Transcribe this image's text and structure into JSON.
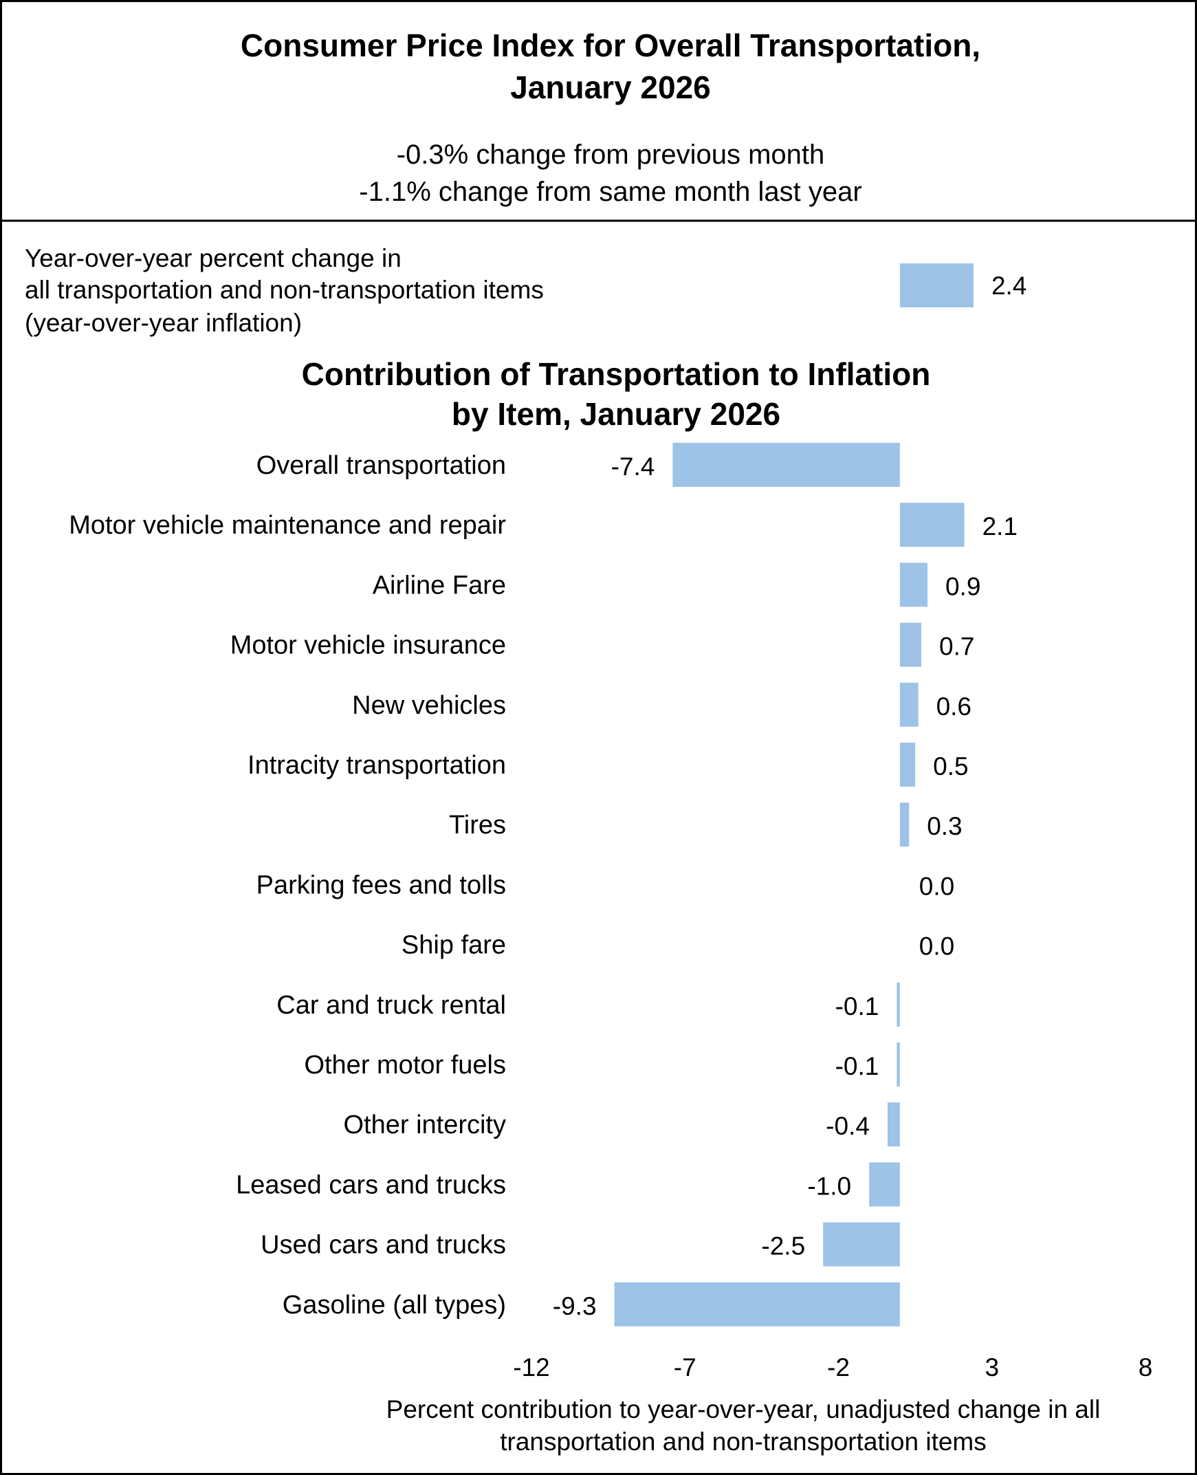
{
  "header": {
    "title_lines": [
      "Consumer Price Index for Overall Transportation,",
      "January 2026"
    ],
    "subtitle_lines": [
      "-0.3% change from previous month",
      "-1.1% change from same month last year"
    ]
  },
  "yoy": {
    "label_lines": [
      "Year-over-year percent change in",
      "all transportation and non-transportation items",
      "(year-over-year inflation)"
    ],
    "value": 2.4,
    "value_label": "2.4"
  },
  "chart_data": {
    "type": "bar",
    "orientation": "horizontal",
    "title_lines": [
      "Contribution of Transportation to Inflation",
      "by Item, January 2026"
    ],
    "categories": [
      "Overall transportation",
      "Motor vehicle maintenance and repair",
      "Airline Fare",
      "Motor vehicle insurance",
      "New vehicles",
      "Intracity transportation",
      "Tires",
      "Parking fees and tolls",
      "Ship fare",
      "Car and truck rental",
      "Other motor fuels",
      "Other intercity",
      "Leased cars and trucks",
      "Used cars and trucks",
      "Gasoline (all types)"
    ],
    "values": [
      -7.4,
      2.1,
      0.9,
      0.7,
      0.6,
      0.5,
      0.3,
      0.0,
      0.0,
      -0.1,
      -0.1,
      -0.4,
      -1.0,
      -2.5,
      -9.3
    ],
    "value_labels": [
      "-7.4",
      "2.1",
      "0.9",
      "0.7",
      "0.6",
      "0.5",
      "0.3",
      "0.0",
      "0.0",
      "-0.1",
      "-0.1",
      "-0.4",
      "-1.0",
      "-2.5",
      "-9.3"
    ],
    "xlim": [
      -12,
      8
    ],
    "xticks": [
      "-12",
      "-7",
      "-2",
      "3",
      "8"
    ],
    "xlabel_lines": [
      "Percent contribution to year-over-year, unadjusted change in all",
      "transportation and non-transportation items"
    ],
    "grid": false,
    "bar_color": "#9DC3E6"
  }
}
